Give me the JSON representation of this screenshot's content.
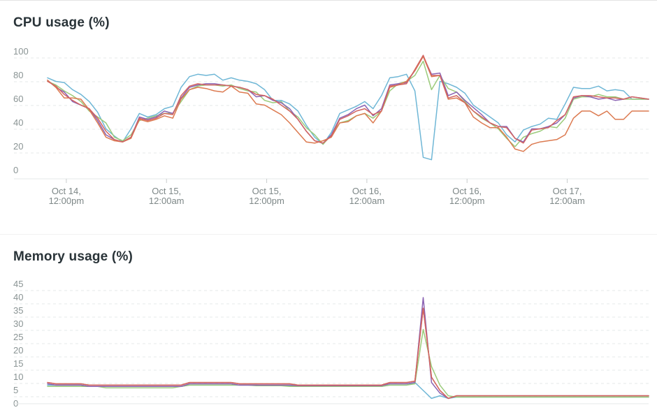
{
  "colors": {
    "blue": "#6fb7d6",
    "green": "#9bcb7b",
    "purple": "#8b63b3",
    "orange": "#dc7a50",
    "red": "#d26461"
  },
  "chart_data": [
    {
      "type": "line",
      "title": "CPU usage (%)",
      "xlabel": "",
      "ylabel": "",
      "ylim": [
        0,
        100
      ],
      "yticks": [
        "100",
        "80",
        "60",
        "40",
        "20",
        "0"
      ],
      "xticks": [
        {
          "line1": "Oct 14,",
          "line2": "12:00pm",
          "x": 1
        },
        {
          "line1": "Oct 15,",
          "line2": "12:00am",
          "x": 13
        },
        {
          "line1": "Oct 15,",
          "line2": "12:00pm",
          "x": 25
        },
        {
          "line1": "Oct 16,",
          "line2": "12:00am",
          "x": 37
        },
        {
          "line1": "Oct 16,",
          "line2": "12:00pm",
          "x": 49
        },
        {
          "line1": "Oct 17,",
          "line2": "12:00am",
          "x": 61
        }
      ],
      "grid": true,
      "x": [
        -1,
        0,
        1,
        2,
        3,
        4,
        5,
        6,
        7,
        8,
        9,
        10,
        11,
        12,
        13,
        14,
        15,
        16,
        17,
        18,
        19,
        20,
        21,
        22,
        23,
        24,
        25,
        26,
        27,
        28,
        29,
        30,
        31,
        32,
        33,
        34,
        35,
        36,
        37,
        38,
        39,
        40,
        41,
        42,
        43,
        44,
        45,
        46,
        47,
        48,
        49,
        50,
        51,
        52,
        53,
        54,
        55,
        56,
        57,
        58,
        59,
        60,
        61,
        62,
        63,
        64,
        65,
        66,
        67,
        68,
        69,
        70,
        71
      ],
      "series": [
        {
          "color": "blue",
          "values": [
            78,
            75,
            74,
            68,
            64,
            58,
            49,
            35,
            29,
            24,
            35,
            48,
            45,
            47,
            52,
            54,
            70,
            79,
            81,
            80,
            81,
            76,
            78,
            76,
            75,
            73,
            68,
            59,
            59,
            56,
            50,
            38,
            28,
            22,
            32,
            48,
            51,
            54,
            58,
            52,
            63,
            78,
            79,
            81,
            67,
            11,
            9,
            75,
            73,
            70,
            65,
            55,
            50,
            45,
            40,
            30,
            24,
            34,
            37,
            39,
            44,
            43,
            56,
            70,
            69,
            69,
            71,
            67,
            68,
            67,
            60,
            60,
            60
          ]
        },
        {
          "color": "green",
          "values": [
            75,
            72,
            67,
            63,
            58,
            50,
            45,
            40,
            28,
            25,
            30,
            42,
            44,
            46,
            48,
            48,
            58,
            68,
            71,
            72,
            72,
            71,
            72,
            69,
            67,
            66,
            59,
            57,
            58,
            50,
            45,
            36,
            30,
            22,
            30,
            40,
            42,
            46,
            48,
            44,
            50,
            67,
            73,
            75,
            80,
            92,
            68,
            80,
            69,
            66,
            58,
            50,
            44,
            40,
            35,
            27,
            20,
            28,
            31,
            33,
            37,
            36,
            44,
            60,
            62,
            62,
            64,
            62,
            62,
            60,
            60,
            60,
            60
          ]
        },
        {
          "color": "purple",
          "values": [
            76,
            70,
            66,
            58,
            55,
            52,
            42,
            30,
            26,
            24,
            28,
            45,
            43,
            45,
            50,
            48,
            61,
            70,
            72,
            73,
            73,
            72,
            71,
            70,
            68,
            62,
            63,
            59,
            57,
            52,
            43,
            33,
            25,
            23,
            30,
            44,
            47,
            52,
            55,
            46,
            52,
            72,
            73,
            74,
            84,
            96,
            81,
            82,
            63,
            66,
            59,
            53,
            47,
            40,
            37,
            37,
            27,
            24,
            35,
            35,
            37,
            40,
            47,
            61,
            63,
            62,
            60,
            61,
            59,
            60,
            62,
            61,
            60
          ]
        },
        {
          "color": "orange",
          "values": [
            76,
            70,
            61,
            61,
            60,
            51,
            40,
            28,
            25,
            24,
            27,
            43,
            41,
            43,
            46,
            44,
            60,
            68,
            70,
            69,
            67,
            66,
            71,
            66,
            65,
            56,
            55,
            51,
            47,
            40,
            32,
            24,
            23,
            25,
            28,
            40,
            41,
            46,
            48,
            40,
            50,
            70,
            72,
            75,
            84,
            96,
            79,
            80,
            60,
            61,
            57,
            45,
            40,
            36,
            36,
            28,
            18,
            16,
            22,
            24,
            25,
            26,
            30,
            44,
            50,
            50,
            46,
            50,
            43,
            43,
            50,
            50,
            50
          ]
        },
        {
          "color": "red",
          "values": [
            75,
            71,
            64,
            59,
            55,
            52,
            44,
            33,
            26,
            24,
            28,
            44,
            42,
            44,
            48,
            47,
            63,
            71,
            73,
            72,
            72,
            72,
            71,
            70,
            68,
            64,
            63,
            60,
            55,
            50,
            43,
            33,
            25,
            23,
            29,
            43,
            46,
            50,
            52,
            47,
            50,
            71,
            72,
            73,
            85,
            97,
            80,
            80,
            61,
            63,
            57,
            50,
            45,
            40,
            37,
            36,
            27,
            23,
            34,
            35,
            36,
            42,
            47,
            62,
            63,
            63,
            62,
            61,
            61,
            60,
            62,
            61,
            60
          ]
        }
      ]
    },
    {
      "type": "line",
      "title": "Memory usage (%)",
      "xlabel": "",
      "ylabel": "",
      "ylim": [
        0,
        45
      ],
      "yticks": [
        "45",
        "40",
        "35",
        "30",
        "25",
        "20",
        "15",
        "10",
        "5",
        "0"
      ],
      "grid": true,
      "x": [
        -1,
        0,
        1,
        2,
        3,
        4,
        5,
        6,
        7,
        8,
        9,
        10,
        11,
        12,
        13,
        14,
        15,
        16,
        17,
        18,
        19,
        20,
        21,
        22,
        23,
        24,
        25,
        26,
        27,
        28,
        29,
        30,
        31,
        32,
        33,
        34,
        35,
        36,
        37,
        38,
        39,
        40,
        41,
        42,
        43,
        44,
        45,
        46,
        47,
        48,
        49,
        50,
        51,
        52,
        53,
        54,
        55,
        56,
        57,
        58,
        59,
        60,
        61,
        62,
        63,
        64,
        65,
        66,
        67,
        68,
        69,
        70,
        71
      ],
      "series": [
        {
          "color": "blue",
          "values": [
            7,
            7,
            7,
            7,
            7,
            6.5,
            6.5,
            6.5,
            6.5,
            6.5,
            6.5,
            6.5,
            6.5,
            6.5,
            6.5,
            6.5,
            6.5,
            7,
            7,
            7,
            7,
            7,
            7,
            7,
            7,
            7,
            6.8,
            6.8,
            6.8,
            6.8,
            6.8,
            6.8,
            6.5,
            6.5,
            6.5,
            6.5,
            6.5,
            6.5,
            6.5,
            6.5,
            6.5,
            7,
            7,
            7,
            8,
            5,
            2,
            3,
            2,
            2.5,
            2.5,
            2.5,
            2.5,
            2.5,
            2.5,
            2.5,
            2.5,
            2.5,
            2.5,
            2.5,
            2.5,
            2.5,
            2.5,
            2.5,
            2.5,
            2.5,
            2.5,
            2.5,
            2.5,
            2.5,
            2.5,
            2.5,
            2.5
          ]
        },
        {
          "color": "green",
          "values": [
            6.5,
            6.5,
            6.5,
            6.5,
            6.5,
            6.5,
            6.5,
            6,
            6,
            6,
            6,
            6,
            6,
            6,
            6,
            6,
            6.5,
            7,
            7,
            7,
            7,
            7,
            7,
            7,
            7,
            6.8,
            6.8,
            6.8,
            6.8,
            6.5,
            6.5,
            6.5,
            6.5,
            6.5,
            6.5,
            6.5,
            6.5,
            6.5,
            6.5,
            6.5,
            6.5,
            7,
            7,
            7,
            7.5,
            28,
            14,
            7,
            3,
            2.5,
            2.5,
            2.5,
            2.5,
            2.5,
            2.5,
            2.5,
            2.5,
            2.5,
            2.5,
            2.5,
            2.5,
            2.5,
            2.5,
            2.5,
            2.5,
            2.5,
            2.5,
            2.5,
            2.5,
            2.5,
            2.5,
            2.5,
            2.5
          ]
        },
        {
          "color": "purple",
          "values": [
            7.5,
            7,
            7,
            7,
            7,
            6.5,
            6.5,
            6.5,
            6.5,
            6.5,
            6.5,
            6.5,
            6.5,
            6.5,
            6.5,
            6.5,
            6.5,
            7.5,
            7.5,
            7.5,
            7.5,
            7.5,
            7.5,
            7,
            7,
            7,
            7,
            7,
            7,
            7,
            6.8,
            6.8,
            6.8,
            6.8,
            6.8,
            6.8,
            6.8,
            6.8,
            6.8,
            6.8,
            6.8,
            7.5,
            7.5,
            7.5,
            8,
            40,
            8,
            4,
            2,
            3,
            3,
            3,
            3,
            3,
            3,
            3,
            3,
            3,
            3,
            3,
            3,
            3,
            3,
            3,
            3,
            3,
            3,
            3,
            3,
            3,
            3,
            3,
            3
          ]
        },
        {
          "color": "orange",
          "values": [
            8,
            7.5,
            7.5,
            7.5,
            7.5,
            7,
            7,
            7,
            7,
            7,
            7,
            7,
            7,
            7,
            7,
            7,
            7,
            8,
            8,
            8,
            8,
            8,
            8,
            7.5,
            7.5,
            7.5,
            7.5,
            7.5,
            7.5,
            7.5,
            7,
            7,
            7,
            7,
            7,
            7,
            7,
            7,
            7,
            7,
            7,
            8,
            8,
            8,
            8.5,
            36,
            10,
            5,
            2,
            3,
            3,
            3,
            3,
            3,
            3,
            3,
            3,
            3,
            3,
            3,
            3,
            3,
            3,
            3,
            3,
            3,
            3,
            3,
            3,
            3,
            3,
            3,
            3
          ]
        },
        {
          "color": "red",
          "values": [
            8,
            7.5,
            7.5,
            7.5,
            7.5,
            7,
            7,
            7,
            7,
            7,
            7,
            7,
            7,
            7,
            7,
            7,
            7,
            8,
            8,
            8,
            8,
            8,
            8,
            7.5,
            7.5,
            7.5,
            7.5,
            7.5,
            7.5,
            7.5,
            7,
            7,
            7,
            7,
            7,
            7,
            7,
            7,
            7,
            7,
            7,
            8,
            8,
            8,
            8.5,
            36,
            10,
            5,
            2,
            3,
            3,
            3,
            3,
            3,
            3,
            3,
            3,
            3,
            3,
            3,
            3,
            3,
            3,
            3,
            3,
            3,
            3,
            3,
            3,
            3,
            3,
            3,
            3
          ]
        }
      ]
    }
  ]
}
